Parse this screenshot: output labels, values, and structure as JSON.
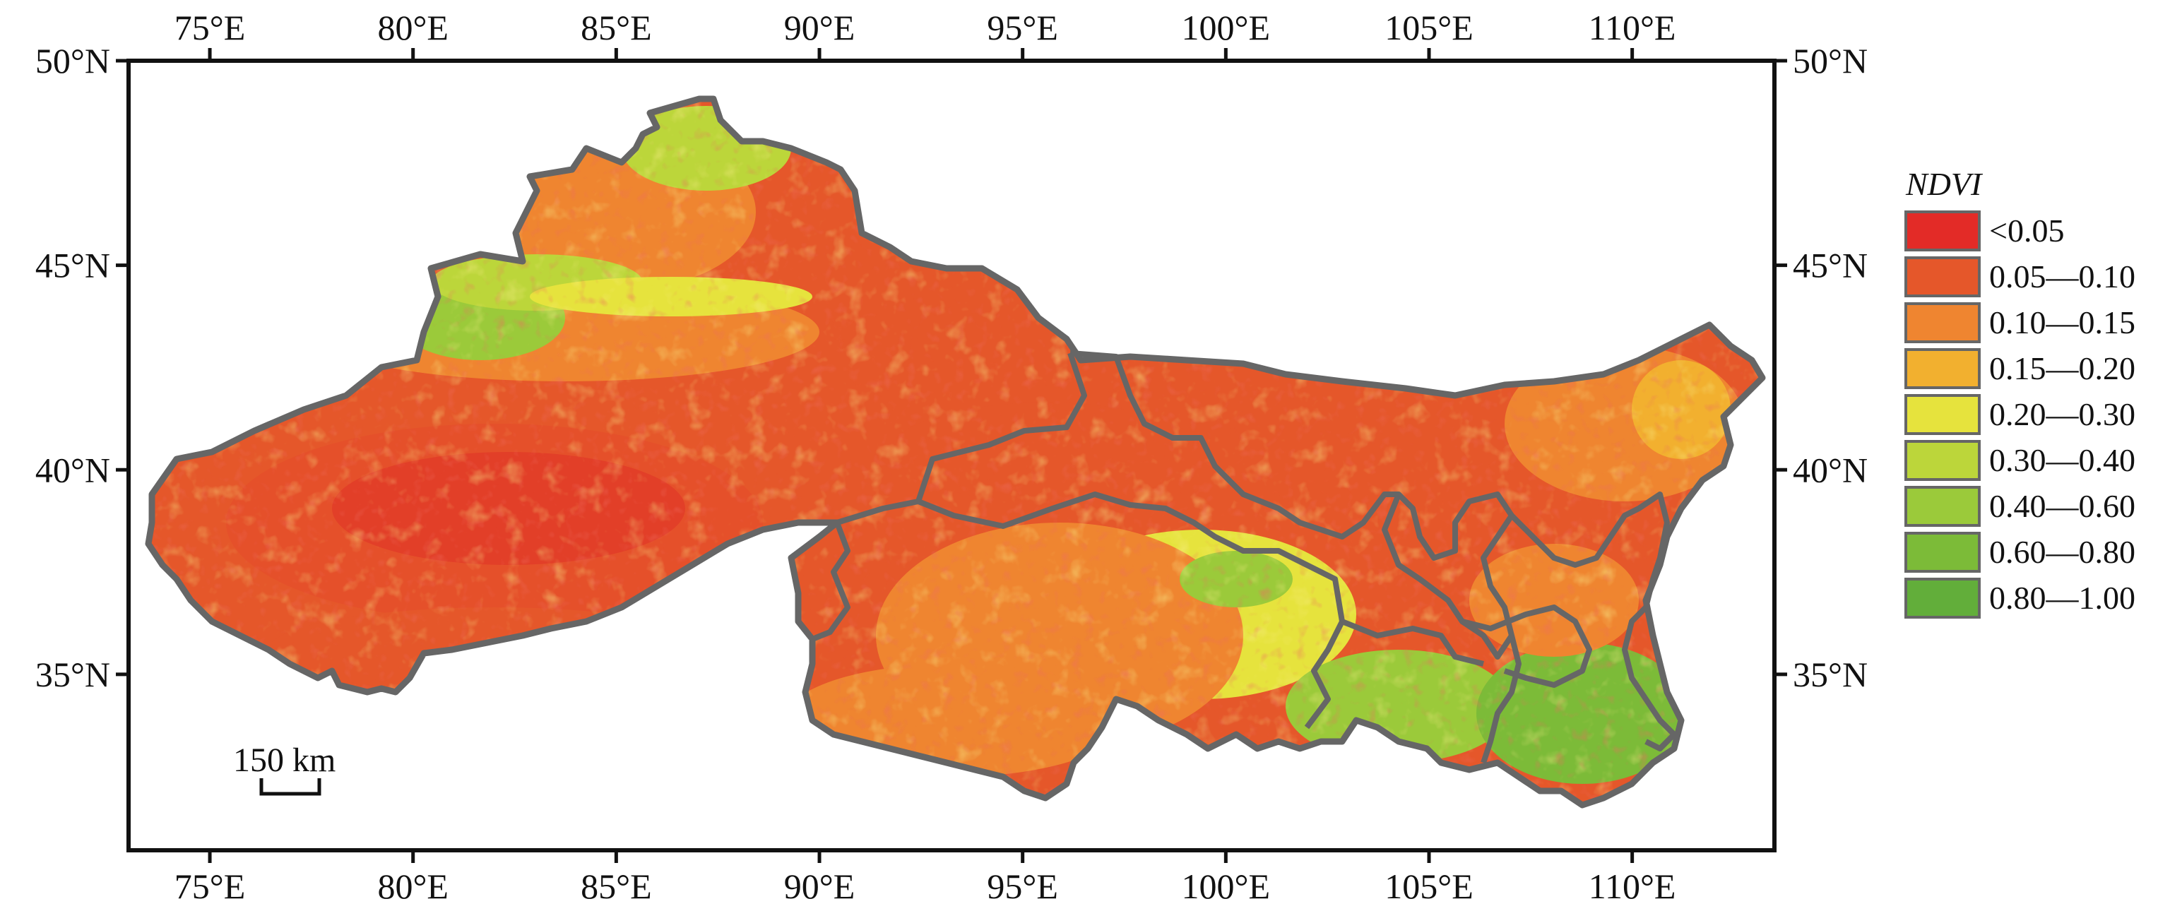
{
  "axes": {
    "lon_labels": [
      "75°E",
      "80°E",
      "85°E",
      "90°E",
      "95°E",
      "100°E",
      "105°E",
      "110°E"
    ],
    "lat_labels": [
      "50°N",
      "45°N",
      "40°N",
      "35°N"
    ],
    "lon_values": [
      75,
      80,
      85,
      90,
      95,
      100,
      105,
      110
    ],
    "lat_values": [
      50,
      45,
      40,
      35
    ],
    "lon_range": [
      73,
      113.5
    ],
    "lat_range": [
      30.7,
      50
    ]
  },
  "legend": {
    "title": "NDVI",
    "items": [
      {
        "label": "<0.05",
        "color": "#e32b27"
      },
      {
        "label": "0.05—0.10",
        "color": "#e5572a"
      },
      {
        "label": "0.10—0.15",
        "color": "#ef8530"
      },
      {
        "label": "0.15—0.20",
        "color": "#f2b02f"
      },
      {
        "label": "0.20—0.30",
        "color": "#e6e33d"
      },
      {
        "label": "0.30—0.40",
        "color": "#bcd63a"
      },
      {
        "label": "0.40—0.60",
        "color": "#9bca3a"
      },
      {
        "label": "0.60—0.80",
        "color": "#7cbb38"
      },
      {
        "label": "0.80—1.00",
        "color": "#62ae3a"
      }
    ]
  },
  "scale_bar": {
    "label": "150 km"
  },
  "colors": {
    "frame": "#111111",
    "boundary": "#666666"
  }
}
